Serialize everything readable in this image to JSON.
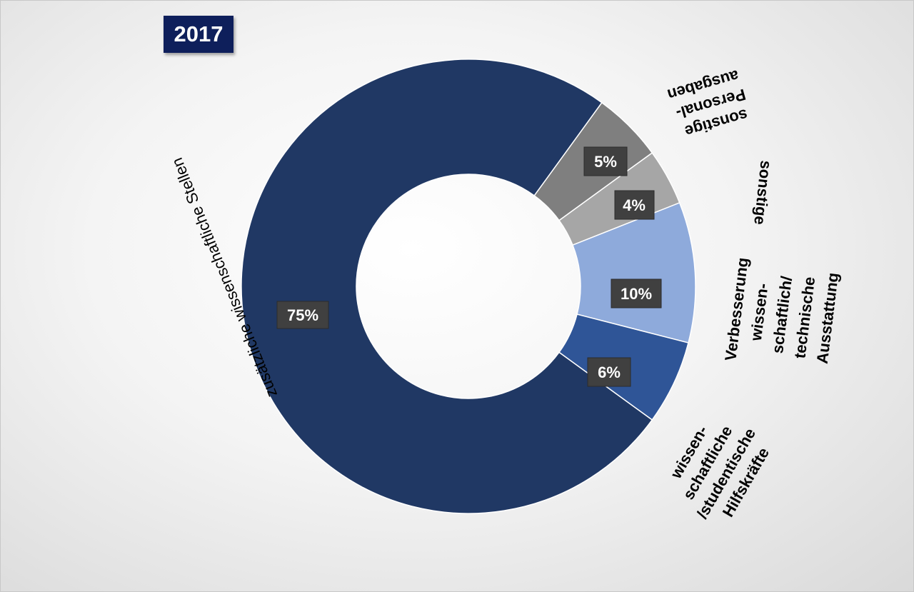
{
  "chart_data": {
    "type": "pie",
    "title": "2017",
    "categories": [
      "zusätzliche wissenschaftliche Stellen",
      "sonstige Personal-ausgaben",
      "sonstige",
      "Verbesserung wissen-schaftlich/ technische Ausstattung",
      "wissen-schaftliche /studentische Hilfskräfte"
    ],
    "values": [
      75,
      5,
      4,
      10,
      6
    ],
    "value_labels": [
      "75%",
      "5%",
      "4%",
      "10%",
      "6%"
    ],
    "colors": [
      "#203864",
      "#7f7f7f",
      "#a6a6a6",
      "#8eaadb",
      "#2f5597"
    ],
    "donut": true
  }
}
